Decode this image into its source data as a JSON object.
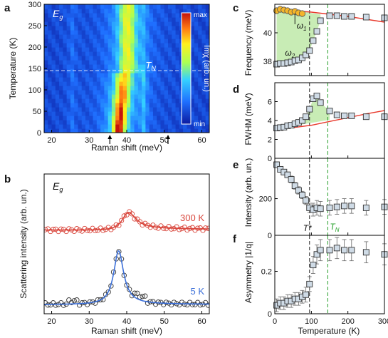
{
  "panel_labels": {
    "a": "a",
    "b": "b",
    "c": "c",
    "d": "d",
    "e": "e",
    "f": "f"
  },
  "colors": {
    "model_line": "#e8382b",
    "green_guide": "#25a02a",
    "fill_green": "#c8ecb5",
    "marker_fill": "#cfdbe6",
    "marker_edge": "#333333",
    "omega1_fill": "#f4b52a",
    "spectrum_300K": "#d9473d",
    "fit_5K": "#3b6fd9"
  },
  "chart_data": [
    {
      "id": "a",
      "type": "heatmap",
      "xlabel": "Raman shift (meV)",
      "ylabel": "Temperature (K)",
      "xlim": [
        18,
        62
      ],
      "ylim": [
        0,
        300
      ],
      "xticks": [
        20,
        30,
        40,
        50,
        60
      ],
      "yticks": [
        0,
        50,
        100,
        150,
        200,
        250,
        300
      ],
      "annotation": "E",
      "annotation_sub": "g",
      "tn_label": "T",
      "tn_sub": "N",
      "tn_value": 145,
      "arrows_x": [
        35.5,
        51
      ],
      "colorbar": {
        "label": "Imχ (arb. un.)",
        "max_label": "max",
        "min_label": "min"
      }
    },
    {
      "id": "b",
      "type": "line",
      "xlabel": "Raman shift (meV)",
      "ylabel": "Scattering intensity (arb. un.)",
      "xlim": [
        18,
        62
      ],
      "xticks": [
        20,
        30,
        40,
        50,
        60
      ],
      "annotation": "E",
      "annotation_sub": "g",
      "series": [
        {
          "name": "300 K",
          "center": 40.2,
          "width": 2.2,
          "asymmetry": 0.3,
          "amplitude": 0.95,
          "offset": 1.0
        },
        {
          "name": "5 K",
          "center": 37.8,
          "width": 1.6,
          "asymmetry": 0.05,
          "amplitude": 2.9,
          "offset": -1.9
        }
      ]
    },
    {
      "id": "c",
      "type": "scatter",
      "ylabel": "Frequency (meV)",
      "xlim": [
        0,
        300
      ],
      "ylim": [
        37,
        42
      ],
      "yticks": [
        38,
        40
      ],
      "tstar": 95,
      "tn": 145,
      "omega1_label": "ω",
      "omega1_sub": "1",
      "omega2_label": "ω",
      "omega2_sub": "2",
      "omega1": {
        "x": [
          5,
          15,
          25,
          35,
          45,
          55,
          65,
          75
        ],
        "y": [
          41.55,
          41.65,
          41.6,
          41.55,
          41.45,
          41.5,
          41.4,
          41.35
        ]
      },
      "omega2": {
        "x": [
          5,
          15,
          25,
          35,
          45,
          55,
          65,
          75,
          85,
          95,
          105,
          115,
          125,
          150,
          170,
          190,
          210,
          250,
          300
        ],
        "y": [
          37.8,
          37.85,
          37.85,
          37.9,
          37.95,
          38.05,
          38.1,
          38.25,
          38.45,
          38.75,
          39.45,
          40.1,
          40.85,
          41.2,
          41.2,
          41.15,
          41.15,
          41.1,
          41.05
        ]
      },
      "model": {
        "x": [
          0,
          50,
          100,
          150,
          200,
          250,
          300
        ],
        "y": [
          41.6,
          41.55,
          41.45,
          41.3,
          41.15,
          40.95,
          40.75
        ]
      }
    },
    {
      "id": "d",
      "type": "scatter",
      "ylabel": "FWHM (meV)",
      "xlim": [
        0,
        300
      ],
      "ylim": [
        0,
        8
      ],
      "yticks": [
        0,
        2,
        4,
        6
      ],
      "tstar": 95,
      "tn": 145,
      "x": [
        5,
        15,
        25,
        35,
        45,
        55,
        65,
        75,
        85,
        95,
        105,
        115,
        125,
        150,
        170,
        190,
        210,
        250,
        300
      ],
      "y": [
        3.2,
        3.25,
        3.3,
        3.45,
        3.5,
        3.65,
        3.8,
        4.0,
        4.4,
        5.2,
        6.3,
        6.6,
        5.9,
        5.0,
        4.6,
        4.5,
        4.5,
        4.4,
        4.4
      ],
      "model": {
        "x": [
          0,
          50,
          100,
          150,
          200,
          250,
          300
        ],
        "y": [
          3.1,
          3.25,
          3.5,
          3.9,
          4.3,
          4.7,
          5.05
        ]
      }
    },
    {
      "id": "e",
      "type": "scatter",
      "ylabel": "Intensity (arb. un.)",
      "xlim": [
        0,
        300
      ],
      "ylim": [
        0,
        420
      ],
      "yticks": [
        0,
        200
      ],
      "tstar": 95,
      "tn": 145,
      "tstar_label": "T*",
      "tn_label": "T",
      "tn_sub": "N",
      "x": [
        5,
        15,
        25,
        35,
        45,
        55,
        65,
        75,
        85,
        95,
        105,
        115,
        125,
        150,
        170,
        190,
        210,
        250,
        300
      ],
      "y": [
        385,
        360,
        345,
        330,
        305,
        270,
        245,
        220,
        190,
        150,
        140,
        150,
        145,
        150,
        155,
        160,
        160,
        150,
        155
      ],
      "err": [
        15,
        15,
        15,
        15,
        18,
        18,
        20,
        20,
        22,
        25,
        35,
        40,
        40,
        40,
        40,
        40,
        40,
        40,
        40
      ]
    },
    {
      "id": "f",
      "type": "scatter",
      "xlabel": "Temperature (K)",
      "ylabel": "Asymmetry |1/q|",
      "xlim": [
        0,
        300
      ],
      "ylim": [
        0,
        0.37
      ],
      "yticks": [
        0,
        0.2
      ],
      "xticks": [
        0,
        100,
        200,
        300
      ],
      "tstar": 95,
      "tn": 145,
      "x": [
        5,
        15,
        25,
        35,
        45,
        55,
        65,
        75,
        85,
        95,
        105,
        115,
        125,
        150,
        170,
        190,
        210,
        250,
        300
      ],
      "y": [
        0.04,
        0.05,
        0.05,
        0.06,
        0.06,
        0.07,
        0.07,
        0.08,
        0.09,
        0.14,
        0.23,
        0.28,
        0.3,
        0.3,
        0.31,
        0.3,
        0.3,
        0.29,
        0.28
      ],
      "err": [
        0.03,
        0.03,
        0.03,
        0.03,
        0.03,
        0.03,
        0.03,
        0.03,
        0.035,
        0.035,
        0.04,
        0.045,
        0.05,
        0.05,
        0.05,
        0.05,
        0.05,
        0.05,
        0.05
      ]
    }
  ]
}
